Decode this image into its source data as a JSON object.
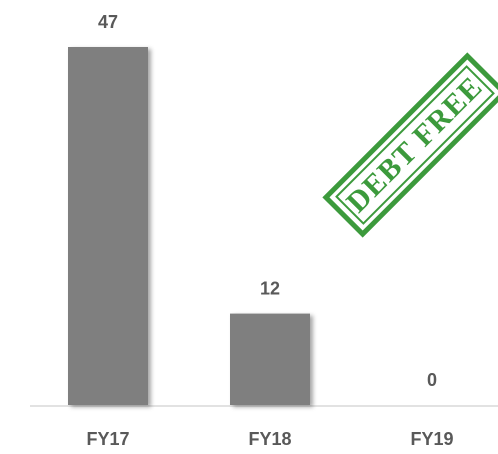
{
  "chart_data": {
    "type": "bar",
    "categories": [
      "FY17",
      "FY18",
      "FY19"
    ],
    "values": [
      47,
      12,
      0
    ],
    "color": "#7f7f7f",
    "annotation": "DEBT FREE"
  }
}
